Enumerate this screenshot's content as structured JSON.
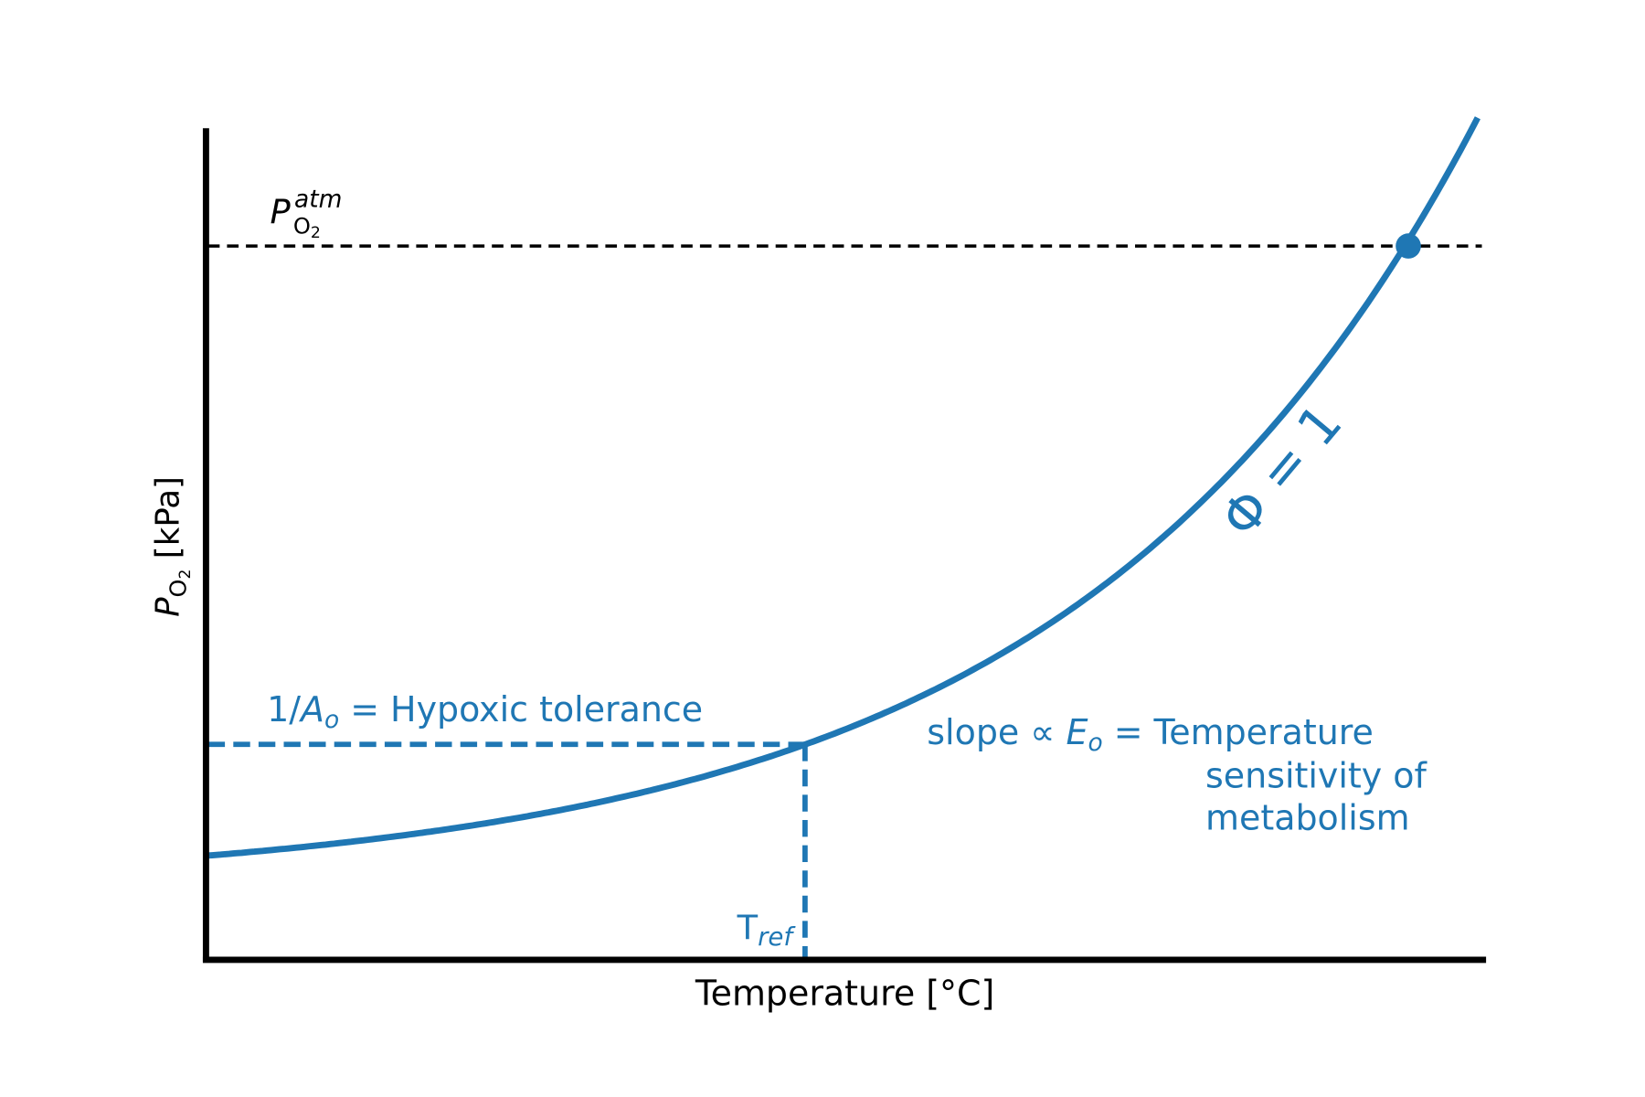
{
  "axes": {
    "x_label": "Temperature [°C]",
    "y_label": {
      "base": "P",
      "sub": "O",
      "sub2": "2",
      "unit": " [kPa]"
    }
  },
  "annotations": {
    "atm": {
      "base": "P",
      "sub": "O",
      "sub2": "2",
      "sup": "atm"
    },
    "hypoxic": {
      "prefix": "1/",
      "base": "A",
      "sub": "o",
      "rest": " = Hypoxic tolerance"
    },
    "slope": {
      "prefix": "slope  ∝  ",
      "base": "E",
      "sub": "o",
      "rest": " = Temperature",
      "line2": "sensitivity of",
      "line3": "metabolism"
    },
    "tref": {
      "base": "T",
      "sub": "ref"
    },
    "phi": "Φ = 1"
  }
}
